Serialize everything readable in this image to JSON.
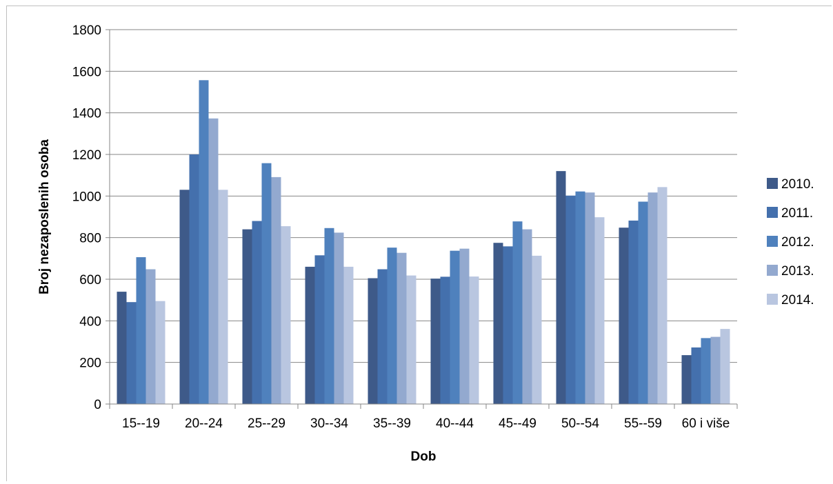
{
  "chart_data": {
    "type": "bar",
    "xlabel": "Dob",
    "ylabel": "Broj nezaposlenih osoba",
    "ylim": [
      0,
      1800
    ],
    "ytick_step": 200,
    "grid": true,
    "legend_position": "right",
    "categories": [
      "15--19",
      "20--24",
      "25--29",
      "30--34",
      "35--39",
      "40--44",
      "45--49",
      "50--54",
      "55--59",
      "60 i više"
    ],
    "series": [
      {
        "name": "2010.",
        "color": "#3e5a89",
        "values": [
          540,
          1030,
          840,
          660,
          605,
          603,
          775,
          1120,
          848,
          235
        ]
      },
      {
        "name": "2011.",
        "color": "#4470ad",
        "values": [
          490,
          1200,
          880,
          715,
          648,
          612,
          758,
          1002,
          882,
          272
        ]
      },
      {
        "name": "2012.",
        "color": "#4f81bd",
        "values": [
          706,
          1557,
          1158,
          846,
          752,
          737,
          878,
          1022,
          973,
          317
        ]
      },
      {
        "name": "2013.",
        "color": "#93a9cf",
        "values": [
          648,
          1373,
          1091,
          824,
          727,
          747,
          840,
          1017,
          1017,
          323
        ]
      },
      {
        "name": "2014.",
        "color": "#b9c6e0",
        "values": [
          495,
          1030,
          855,
          660,
          618,
          613,
          713,
          898,
          1043,
          361
        ]
      }
    ]
  }
}
